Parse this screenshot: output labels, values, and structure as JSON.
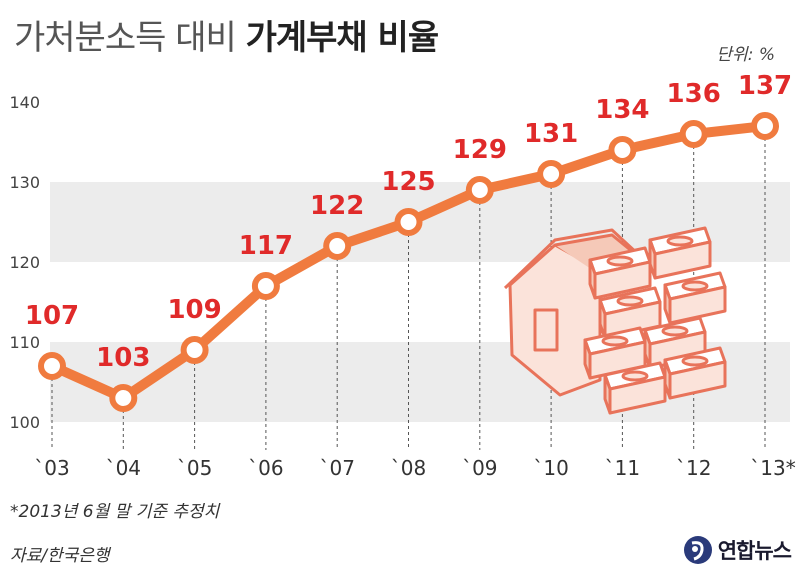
{
  "header": {
    "title_light": "가처분소득 대비",
    "title_bold": "가계부채 비율",
    "unit": "단위: %"
  },
  "footer": {
    "note": "*2013년 6월 말 기준 추정치",
    "source": "자료/한국은행",
    "logo_text": "연합뉴스"
  },
  "colors": {
    "line": "#f07b3f",
    "label": "#e02a2a",
    "band": "#ececec",
    "illustration": "#e8735a"
  },
  "chart_data": {
    "type": "line",
    "title": "가처분소득 대비 가계부채 비율",
    "unit": "단위: %",
    "categories": [
      "`03",
      "`04",
      "`05",
      "`06",
      "`07",
      "`08",
      "`09",
      "`10",
      "`11",
      "`12",
      "`13*"
    ],
    "values": [
      107,
      103,
      109,
      117,
      122,
      125,
      129,
      131,
      134,
      136,
      137
    ],
    "yticks": [
      100,
      110,
      120,
      130,
      140
    ],
    "ylim": [
      100,
      140
    ],
    "grid": "alternating horizontal bands",
    "legend": "none"
  },
  "illustration": "house-and-money-stacks-icon"
}
